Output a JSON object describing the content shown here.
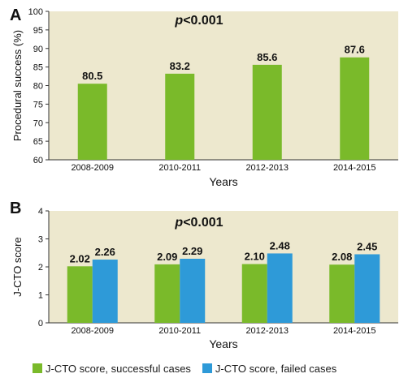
{
  "colors": {
    "plot_bg": "#ede8ce",
    "green": "#7aba2a",
    "blue": "#2e9ad8",
    "axis": "#333333"
  },
  "chart_data": [
    {
      "panel_label": "A",
      "type": "bar",
      "annotation_p": "p",
      "annotation_rest": "<0.001",
      "categories": [
        "2008-2009",
        "2010-2011",
        "2012-2013",
        "2014-2015"
      ],
      "series": [
        {
          "values": [
            80.5,
            83.2,
            85.6,
            87.6
          ],
          "labels": [
            "80.5",
            "83.2",
            "85.6",
            "87.6"
          ],
          "color": "#7aba2a"
        }
      ],
      "xlabel": "Years",
      "ylabel": "Procedural success (%)",
      "ylim": [
        60,
        100
      ],
      "yticks": [
        60,
        65,
        70,
        75,
        80,
        85,
        90,
        95,
        100
      ],
      "grid": false
    },
    {
      "panel_label": "B",
      "type": "bar",
      "annotation_p": "p",
      "annotation_rest": "<0.001",
      "categories": [
        "2008-2009",
        "2010-2011",
        "2012-2013",
        "2014-2015"
      ],
      "series": [
        {
          "name": "J-CTO score, successful cases",
          "values": [
            2.02,
            2.09,
            2.1,
            2.08
          ],
          "labels": [
            "2.02",
            "2.09",
            "2.10",
            "2.08"
          ],
          "color": "#7aba2a"
        },
        {
          "name": "J-CTO score, failed cases",
          "values": [
            2.26,
            2.29,
            2.48,
            2.45
          ],
          "labels": [
            "2.26",
            "2.29",
            "2.48",
            "2.45"
          ],
          "color": "#2e9ad8"
        }
      ],
      "xlabel": "Years",
      "ylabel": "J-CTO score",
      "ylim": [
        0,
        4
      ],
      "yticks": [
        0,
        1,
        2,
        3,
        4
      ],
      "grid": false,
      "legend_position": "bottom"
    }
  ]
}
